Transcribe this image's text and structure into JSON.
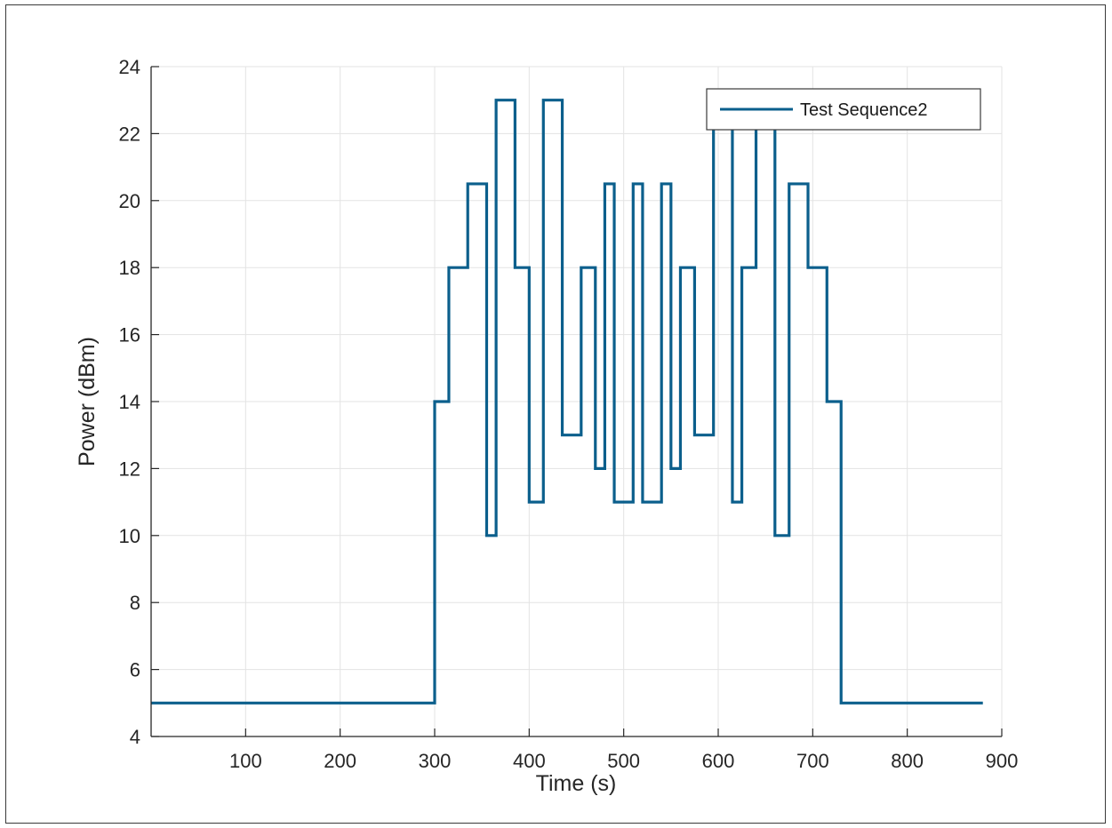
{
  "chart_data": {
    "type": "line",
    "xlabel": "Time (s)",
    "ylabel": "Power (dBm)",
    "xlim": [
      0,
      900
    ],
    "ylim": [
      4,
      24
    ],
    "x_ticks": [
      100,
      200,
      300,
      400,
      500,
      600,
      700,
      800,
      900
    ],
    "y_ticks": [
      4,
      6,
      8,
      10,
      12,
      14,
      16,
      18,
      20,
      22,
      24
    ],
    "grid": true,
    "legend_position": "top-right",
    "step": true,
    "series": [
      {
        "name": "Test Sequence2",
        "color": "#0b5f8c",
        "x": [
          0,
          300,
          300,
          315,
          315,
          335,
          335,
          355,
          355,
          365,
          365,
          385,
          385,
          400,
          400,
          415,
          415,
          435,
          435,
          455,
          455,
          470,
          470,
          480,
          480,
          490,
          490,
          510,
          510,
          520,
          520,
          540,
          540,
          550,
          550,
          560,
          560,
          575,
          575,
          595,
          595,
          615,
          615,
          625,
          625,
          640,
          640,
          660,
          660,
          675,
          675,
          695,
          695,
          715,
          715,
          730,
          730,
          880
        ],
        "y": [
          5,
          5,
          14,
          14,
          18,
          18,
          20.5,
          20.5,
          10,
          10,
          23,
          23,
          18,
          18,
          11,
          11,
          23,
          23,
          13,
          13,
          18,
          18,
          12,
          12,
          20.5,
          20.5,
          11,
          11,
          20.5,
          20.5,
          11,
          11,
          20.5,
          20.5,
          12,
          12,
          18,
          18,
          13,
          13,
          23,
          23,
          11,
          11,
          18,
          18,
          23,
          23,
          10,
          10,
          20.5,
          20.5,
          18,
          18,
          14,
          14,
          5,
          5
        ]
      }
    ]
  }
}
